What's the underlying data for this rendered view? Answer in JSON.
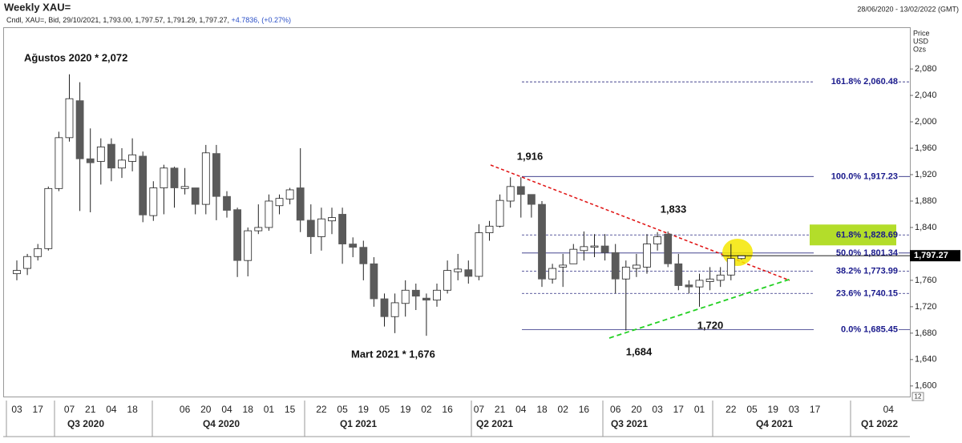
{
  "chart_data": {
    "type": "candlestick",
    "title": "Weekly XAU=",
    "date_range": "28/06/2020 - 13/02/2022 (GMT)",
    "subtitle": "Cndl, XAU=, Bid, 29/10/2021, 1,793.00, 1,797.57, 1,791.29, 1,797.27,",
    "subtitle_change": "+4.7836, (+0.27%)",
    "axis_header": [
      "Price",
      "USD",
      "Ozs"
    ],
    "corner_label": "12",
    "categories": [
      "03",
      null,
      "17",
      null,
      null,
      "07",
      null,
      "21",
      null,
      "04",
      null,
      "18",
      null,
      null,
      null,
      null,
      "06",
      null,
      "20",
      null,
      "04",
      null,
      "18",
      null,
      "01",
      null,
      "15",
      null,
      null,
      "22",
      null,
      "05",
      null,
      "19",
      null,
      "05",
      null,
      "19",
      null,
      "02",
      null,
      "16",
      null,
      null,
      "07",
      null,
      "21",
      null,
      "04",
      null,
      "18",
      null,
      "02",
      null,
      "16",
      null,
      null,
      "06",
      null,
      "20",
      null,
      "03",
      null,
      "17",
      null,
      "01",
      null,
      null,
      "22",
      null,
      "05",
      null,
      "19",
      null,
      "03",
      null,
      "17",
      null,
      null,
      null,
      null,
      null,
      null,
      "04",
      null
    ],
    "quarters": [
      "Q3 2020",
      "Q4 2020",
      "Q1 2021",
      "Q2 2021",
      "Q3 2021",
      "Q4 2021",
      "Q1 2022"
    ],
    "open": [
      1770,
      1778,
      1796,
      1808,
      1899,
      1976,
      2032,
      1944,
      1940,
      1966,
      1930,
      1940,
      1948,
      1858,
      1900,
      1930,
      1899,
      1900,
      1875,
      1952,
      1887,
      1867,
      1790,
      1835,
      1840,
      1873,
      1883,
      1900,
      1851,
      1826,
      1850,
      1860,
      1815,
      1810,
      1785,
      1732,
      1705,
      1725,
      1745,
      1733,
      1730,
      1745,
      1773,
      1776,
      1766,
      1832,
      1842,
      1880,
      1902,
      1890,
      1875,
      1762,
      1780,
      1785,
      1805,
      1810,
      1812,
      1802,
      1762,
      1778,
      1780,
      1815,
      1830,
      1785,
      1753,
      1750,
      1758,
      1760,
      1768,
      1793.0,
      null,
      null,
      null,
      null,
      null,
      null,
      null,
      null,
      null,
      null,
      null,
      null,
      null,
      null,
      null
    ],
    "high": [
      1790,
      1800,
      1815,
      1902,
      1985,
      2072,
      2060,
      1990,
      1975,
      1975,
      1960,
      1975,
      1955,
      1910,
      1935,
      1932,
      1930,
      1900,
      1965,
      1965,
      1895,
      1870,
      1840,
      1875,
      1890,
      1890,
      1900,
      1960,
      1875,
      1870,
      1870,
      1870,
      1825,
      1820,
      1795,
      1740,
      1740,
      1760,
      1755,
      1740,
      1755,
      1790,
      1800,
      1790,
      1845,
      1850,
      1890,
      1916,
      1916,
      1890,
      1880,
      1785,
      1800,
      1815,
      1834,
      1830,
      1830,
      1815,
      1790,
      1800,
      1830,
      1833,
      1834,
      1800,
      1760,
      1770,
      1780,
      1780,
      1815,
      1797.57,
      null,
      null,
      null,
      null,
      null,
      null,
      null,
      null,
      null,
      null,
      null,
      null,
      null,
      null,
      null
    ],
    "low": [
      1760,
      1768,
      1790,
      1805,
      1895,
      1970,
      1865,
      1863,
      1905,
      1910,
      1915,
      1925,
      1848,
      1850,
      1860,
      1870,
      1890,
      1860,
      1860,
      1851,
      1855,
      1765,
      1766,
      1830,
      1835,
      1860,
      1875,
      1833,
      1800,
      1805,
      1830,
      1785,
      1795,
      1760,
      1720,
      1690,
      1680,
      1705,
      1715,
      1676,
      1720,
      1740,
      1760,
      1755,
      1760,
      1820,
      1840,
      1870,
      1855,
      1855,
      1750,
      1755,
      1750,
      1785,
      1790,
      1795,
      1790,
      1740,
      1684,
      1765,
      1770,
      1805,
      1780,
      1745,
      1740,
      1720,
      1745,
      1750,
      1760,
      1791.29,
      null,
      null,
      null,
      null,
      null,
      null,
      null,
      null,
      null,
      null,
      null,
      null,
      null,
      null,
      null
    ],
    "close": [
      1775,
      1796,
      1808,
      1899,
      1976,
      2035,
      1944,
      1938,
      1962,
      1930,
      1942,
      1950,
      1859,
      1900,
      1930,
      1900,
      1902,
      1875,
      1953,
      1887,
      1866,
      1790,
      1835,
      1840,
      1880,
      1884,
      1897,
      1851,
      1826,
      1853,
      1855,
      1815,
      1810,
      1785,
      1732,
      1705,
      1726,
      1745,
      1736,
      1730,
      1745,
      1775,
      1777,
      1766,
      1832,
      1842,
      1881,
      1902,
      1890,
      1875,
      1762,
      1778,
      1783,
      1807,
      1811,
      1812,
      1802,
      1762,
      1780,
      1783,
      1815,
      1826,
      1785,
      1752,
      1750,
      1760,
      1762,
      1768,
      1793,
      1797.27,
      null,
      null,
      null,
      null,
      null,
      null,
      null,
      null,
      null,
      null,
      null,
      null,
      null,
      null,
      null
    ],
    "up_color": "#ffffff",
    "down_color": "#5a5a5a",
    "ylim": [
      1584,
      2142
    ],
    "yticks": [
      {
        "value": 1600,
        "label": "1,600"
      },
      {
        "value": 1640,
        "label": "1,640"
      },
      {
        "value": 1680,
        "label": "1,680"
      },
      {
        "value": 1720,
        "label": "1,720"
      },
      {
        "value": 1760,
        "label": "1,760"
      },
      {
        "value": 1800,
        "label": "1,800"
      },
      {
        "value": 1840,
        "label": "1,840"
      },
      {
        "value": 1880,
        "label": "1,880"
      },
      {
        "value": 1920,
        "label": "1,920"
      },
      {
        "value": 1960,
        "label": "1,960"
      },
      {
        "value": 2000,
        "label": "2,000"
      },
      {
        "value": 2040,
        "label": "2,040"
      },
      {
        "value": 2080,
        "label": "2,080"
      }
    ],
    "last_price": {
      "value": 1797.27,
      "label": "1,797.27"
    },
    "fib_levels": [
      {
        "label": "161.8%",
        "value": 2060.48,
        "value_label": "2,060.48",
        "style": "dashed"
      },
      {
        "label": "100.0%",
        "value": 1917.23,
        "value_label": "1,917.23",
        "style": "solid"
      },
      {
        "label": "61.8%",
        "value": 1828.69,
        "value_label": "1,828.69",
        "style": "dashed",
        "highlight_color": "#b3dd2a"
      },
      {
        "label": "50.0%",
        "value": 1801.34,
        "value_label": "1,801.34",
        "style": "solid"
      },
      {
        "label": "38.2%",
        "value": 1773.99,
        "value_label": "1,773.99",
        "style": "dashed"
      },
      {
        "label": "23.6%",
        "value": 1740.15,
        "value_label": "1,740.15",
        "style": "dashed"
      },
      {
        "label": "0.0%",
        "value": 1685.45,
        "value_label": "1,685.45",
        "style": "solid"
      }
    ],
    "annotations": [
      "Ağustos 2020 * 2,072",
      "Mart 2021 * 1,676",
      "1,916",
      "1,833",
      "1,720",
      "1,684"
    ]
  }
}
